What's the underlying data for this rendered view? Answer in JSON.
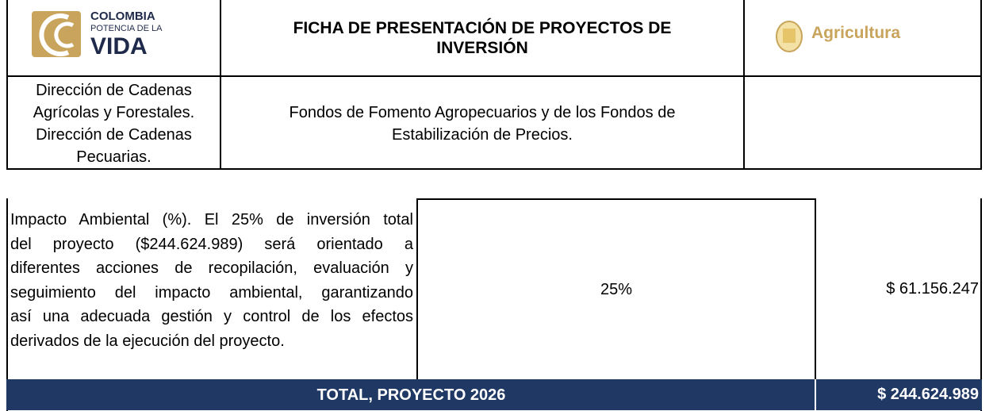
{
  "header": {
    "logo": {
      "line1": "COLOMBIA",
      "line2": "POTENCIA DE LA",
      "line3": "VIDA"
    },
    "title_lines": [
      "FICHA DE PRESENTACIÓN DE PROYECTOS DE",
      "INVERSIÓN"
    ],
    "ministry": "Agricultura",
    "office_lines": [
      "Dirección de Cadenas",
      "Agrícolas y Forestales.",
      "Dirección de Cadenas",
      "Pecuarias."
    ],
    "subtitle_lines": [
      "Fondos de Fomento Agropecuarios y de los Fondos de",
      "Estabilización de Precios."
    ]
  },
  "table": {
    "rows": [
      {
        "description_lines": [
          "Impacto Ambiental (%). El 25% de inversión total",
          "del proyecto ($244.624.989) será orientado a",
          "diferentes acciones de recopilación, evaluación y",
          "seguimiento del impacto ambiental, garantizando",
          "así una adecuada gestión y control de los efectos",
          "derivados de la ejecución del proyecto."
        ],
        "percent": "25%",
        "amount": "$ 61.156.247"
      }
    ],
    "total": {
      "label": "TOTAL, PROYECTO 2026",
      "amount": "$ 244.624.989"
    }
  }
}
